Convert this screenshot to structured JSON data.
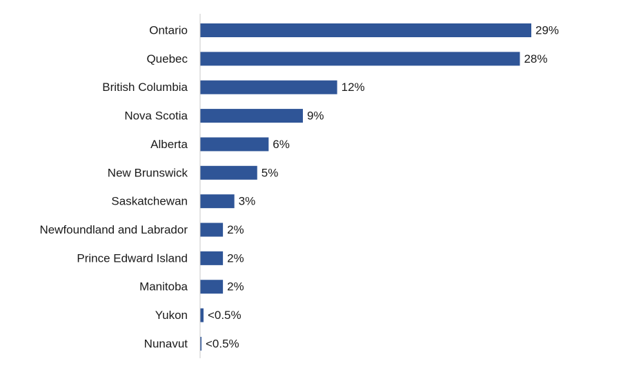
{
  "chart_data": {
    "type": "bar",
    "orientation": "horizontal",
    "categories": [
      "Ontario",
      "Quebec",
      "British Columbia",
      "Nova Scotia",
      "Alberta",
      "New Brunswick",
      "Saskatchewan",
      "Newfoundland and Labrador",
      "Prince Edward Island",
      "Manitoba",
      "Yukon",
      "Nunavut"
    ],
    "values": [
      29,
      28,
      12,
      9,
      6,
      5,
      3,
      2,
      2,
      2,
      0.3,
      0.1
    ],
    "value_labels": [
      "29%",
      "28%",
      "12%",
      "9%",
      "6%",
      "5%",
      "3%",
      "2%",
      "2%",
      "2%",
      "<0.5%",
      "<0.5%"
    ],
    "bar_color": "#2f5597",
    "xlim": [
      0,
      29
    ],
    "title": "",
    "xlabel": "",
    "ylabel": "",
    "grid": false,
    "legend": "none"
  }
}
